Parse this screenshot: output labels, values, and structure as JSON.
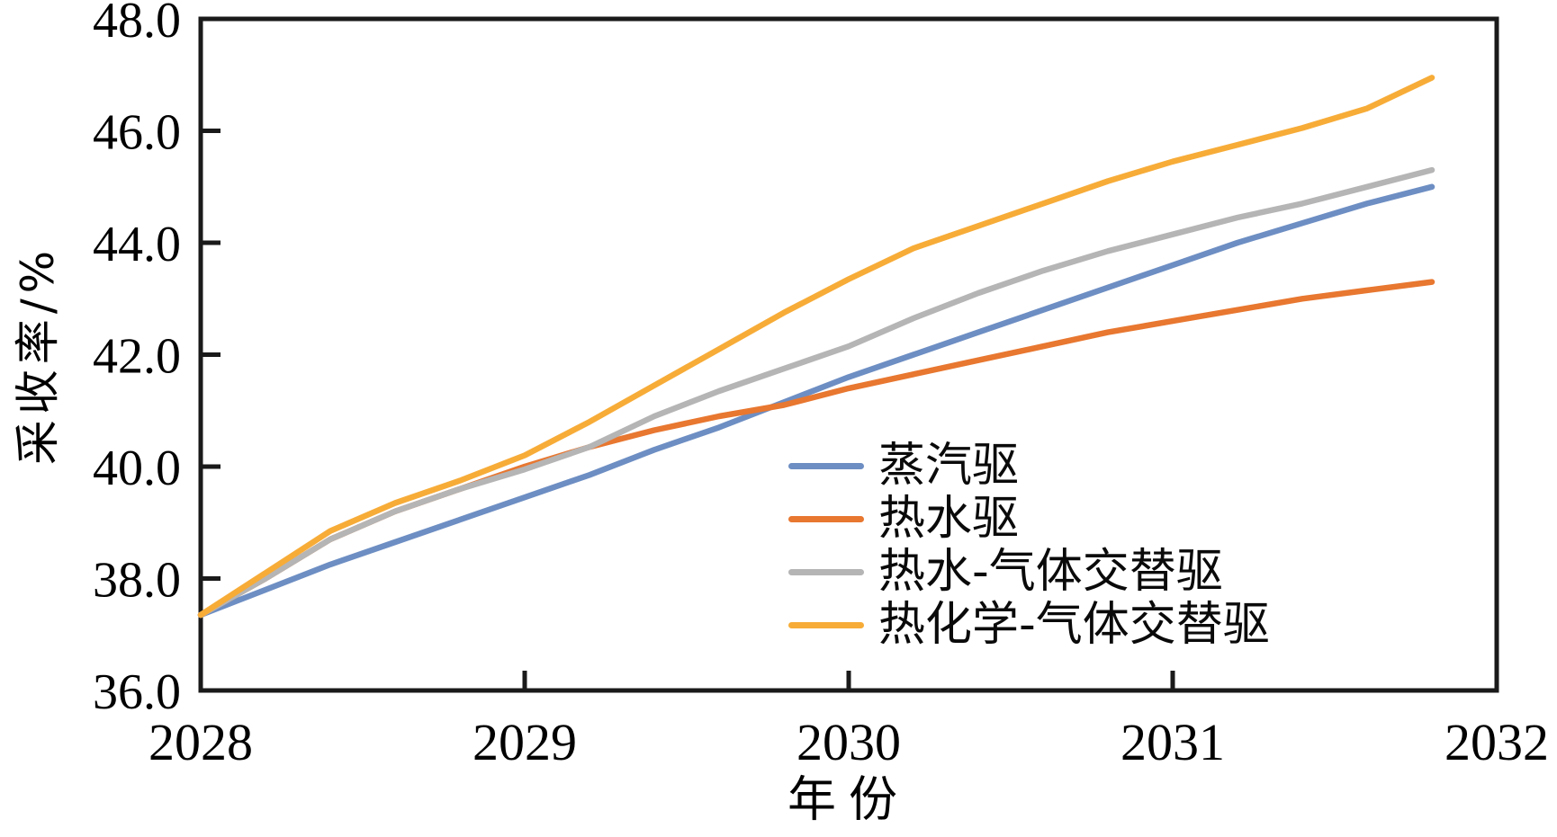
{
  "chart_data": {
    "type": "line",
    "title": "",
    "xlabel": "年份",
    "ylabel": "采收率/%",
    "xlim": [
      2028,
      2032
    ],
    "ylim": [
      36.0,
      48.0
    ],
    "x_ticks": [
      "2028",
      "2029",
      "2030",
      "2031",
      "2032"
    ],
    "y_ticks": [
      "36.0",
      "38.0",
      "40.0",
      "42.0",
      "44.0",
      "46.0",
      "48.0"
    ],
    "grid": false,
    "legend_position": "inside-lower-right",
    "axis_color": "#1a1a1a",
    "x": [
      2028.0,
      2028.2,
      2028.4,
      2028.6,
      2028.8,
      2029.0,
      2029.2,
      2029.4,
      2029.6,
      2029.8,
      2030.0,
      2030.2,
      2030.4,
      2030.6,
      2030.8,
      2031.0,
      2031.2,
      2031.4,
      2031.6,
      2031.8
    ],
    "series": [
      {
        "name": "蒸汽驱",
        "color": "#6D8EC3",
        "values": [
          37.35,
          37.8,
          38.25,
          38.65,
          39.05,
          39.45,
          39.85,
          40.3,
          40.7,
          41.15,
          41.6,
          42.0,
          42.4,
          42.8,
          43.2,
          43.6,
          44.0,
          44.35,
          44.7,
          45.0
        ]
      },
      {
        "name": "热水驱",
        "color": "#E87730",
        "values": [
          37.35,
          38.0,
          38.7,
          39.2,
          39.6,
          40.0,
          40.35,
          40.65,
          40.9,
          41.1,
          41.4,
          41.65,
          41.9,
          42.15,
          42.4,
          42.6,
          42.8,
          43.0,
          43.15,
          43.3
        ]
      },
      {
        "name": "热水-气体交替驱",
        "color": "#B5B5B5",
        "values": [
          37.35,
          38.0,
          38.7,
          39.2,
          39.6,
          39.95,
          40.35,
          40.9,
          41.35,
          41.75,
          42.15,
          42.65,
          43.1,
          43.5,
          43.85,
          44.15,
          44.45,
          44.7,
          45.0,
          45.3
        ]
      },
      {
        "name": "热化学-气体交替驱",
        "color": "#F7AC38",
        "values": [
          37.35,
          38.1,
          38.85,
          39.35,
          39.75,
          40.2,
          40.8,
          41.45,
          42.1,
          42.75,
          43.35,
          43.9,
          44.3,
          44.7,
          45.1,
          45.45,
          45.75,
          46.05,
          46.4,
          46.95
        ]
      }
    ]
  }
}
